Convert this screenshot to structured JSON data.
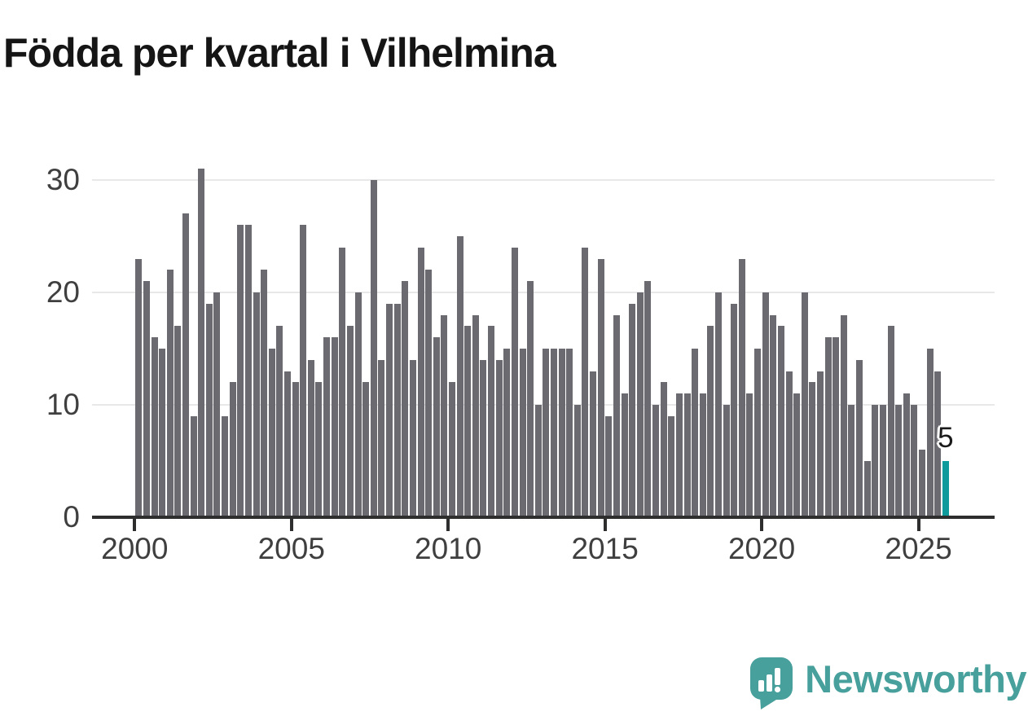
{
  "title": "Födda per kvartal i Vilhelmina",
  "colors": {
    "bar": "#6a6a70",
    "highlight_bar": "#0f9a9c",
    "gridline": "#e8e8e8",
    "axis_line": "#2e2e2e",
    "axis_text": "#3f3f3f",
    "title_text": "#151515",
    "logo_teal": "#47a09c",
    "background": "#ffffff"
  },
  "chart_data": {
    "type": "bar",
    "title": "Födda per kvartal i Vilhelmina",
    "x_unit": "quarter",
    "x_span": {
      "start": "2000-Q1",
      "end": "2025-Q4",
      "count": 104
    },
    "x_tick_labels": [
      "2000",
      "2005",
      "2010",
      "2015",
      "2020",
      "2025"
    ],
    "y_ticks": [
      0,
      10,
      20,
      30
    ],
    "ylim": [
      0,
      31
    ],
    "grid": "horizontal",
    "legend": "none",
    "values": [
      23,
      21,
      16,
      15,
      22,
      17,
      27,
      9,
      31,
      19,
      20,
      9,
      12,
      26,
      26,
      20,
      22,
      15,
      17,
      13,
      12,
      26,
      14,
      12,
      16,
      16,
      24,
      17,
      20,
      12,
      30,
      14,
      19,
      19,
      21,
      14,
      24,
      22,
      16,
      18,
      12,
      25,
      17,
      18,
      14,
      17,
      14,
      15,
      24,
      15,
      21,
      10,
      15,
      15,
      15,
      15,
      10,
      24,
      13,
      23,
      9,
      18,
      11,
      19,
      20,
      21,
      10,
      12,
      9,
      11,
      11,
      15,
      11,
      17,
      20,
      10,
      19,
      23,
      11,
      15,
      20,
      18,
      17,
      13,
      11,
      20,
      12,
      13,
      16,
      16,
      18,
      10,
      14,
      5,
      10,
      10,
      17,
      10,
      11,
      10,
      6,
      15,
      13,
      5
    ],
    "highlight": {
      "index": 103,
      "quarter": "2025-Q4",
      "value": 5,
      "label": "5"
    }
  },
  "logo": {
    "text": "Newsworthy",
    "icon": "newsworthy-chart-bubble-icon"
  }
}
